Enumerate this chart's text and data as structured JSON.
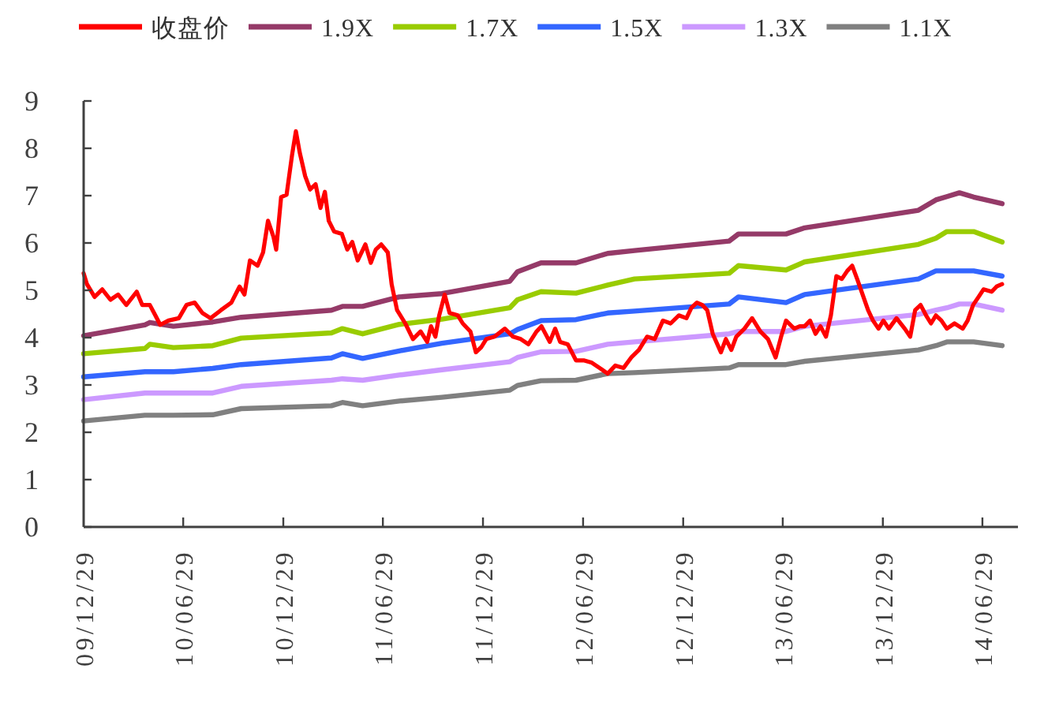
{
  "chart_data": {
    "type": "line",
    "legend": "top",
    "grid": false,
    "ylim": [
      0,
      9
    ],
    "yticks": [
      0,
      1,
      2,
      3,
      4,
      5,
      6,
      7,
      8,
      9
    ],
    "xlim": [
      "2009-12-29",
      "2014-09-02"
    ],
    "xticks": [
      {
        "value": "2009-12-29",
        "label": "09/12/29"
      },
      {
        "value": "2010-06-29",
        "label": "10/06/29"
      },
      {
        "value": "2010-12-29",
        "label": "10/12/29"
      },
      {
        "value": "2011-06-29",
        "label": "11/06/29"
      },
      {
        "value": "2011-12-29",
        "label": "11/12/29"
      },
      {
        "value": "2012-06-29",
        "label": "12/06/29"
      },
      {
        "value": "2012-12-29",
        "label": "12/12/29"
      },
      {
        "value": "2013-06-29",
        "label": "13/06/29"
      },
      {
        "value": "2013-12-29",
        "label": "13/12/29"
      },
      {
        "value": "2014-06-29",
        "label": "14/06/29"
      }
    ],
    "x": [
      "2009-12-29",
      "2010-04-20",
      "2010-04-29",
      "2010-06-11",
      "2010-08-22",
      "2010-10-13",
      "2011-03-27",
      "2011-04-16",
      "2011-05-23",
      "2011-07-29",
      "2011-10-15",
      "2012-02-16",
      "2012-03-01",
      "2012-04-13",
      "2012-06-16",
      "2012-08-13",
      "2012-10-01",
      "2013-03-23",
      "2013-04-09",
      "2013-07-05",
      "2013-08-08",
      "2014-03-04",
      "2014-04-05",
      "2014-04-25",
      "2014-05-18",
      "2014-06-13",
      "2014-08-04"
    ],
    "series": [
      {
        "name": "收盘价",
        "color": "#ff0000",
        "x": [
          "2009-12-29",
          "2010-01-04",
          "2010-01-18",
          "2010-02-01",
          "2010-02-16",
          "2010-03-02",
          "2010-03-17",
          "2010-04-05",
          "2010-04-15",
          "2010-04-29",
          "2010-05-09",
          "2010-05-18",
          "2010-06-02",
          "2010-06-21",
          "2010-07-05",
          "2010-07-20",
          "2010-08-03",
          "2010-08-18",
          "2010-09-06",
          "2010-09-25",
          "2010-10-10",
          "2010-10-19",
          "2010-10-29",
          "2010-11-12",
          "2010-11-22",
          "2010-12-01",
          "2010-12-11",
          "2010-12-16",
          "2010-12-25",
          "2011-01-04",
          "2011-01-14",
          "2011-01-21",
          "2011-01-28",
          "2011-02-07",
          "2011-02-16",
          "2011-02-26",
          "2011-03-07",
          "2011-03-15",
          "2011-03-22",
          "2011-04-01",
          "2011-04-15",
          "2011-04-25",
          "2011-05-04",
          "2011-05-14",
          "2011-05-28",
          "2011-06-07",
          "2011-06-16",
          "2011-06-26",
          "2011-07-08",
          "2011-07-15",
          "2011-07-25",
          "2011-08-09",
          "2011-08-23",
          "2011-09-06",
          "2011-09-18",
          "2011-09-25",
          "2011-10-03",
          "2011-10-10",
          "2011-10-20",
          "2011-10-29",
          "2011-11-13",
          "2011-11-22",
          "2011-12-06",
          "2011-12-16",
          "2011-12-26",
          "2012-01-04",
          "2012-01-19",
          "2012-02-07",
          "2012-02-22",
          "2012-03-07",
          "2012-03-21",
          "2012-04-05",
          "2012-04-14",
          "2012-04-29",
          "2012-05-09",
          "2012-05-18",
          "2012-06-01",
          "2012-06-16",
          "2012-06-30",
          "2012-07-15",
          "2012-07-29",
          "2012-08-13",
          "2012-08-27",
          "2012-09-11",
          "2012-09-25",
          "2012-10-09",
          "2012-10-24",
          "2012-11-07",
          "2012-11-22",
          "2012-12-06",
          "2012-12-21",
          "2013-01-04",
          "2013-01-13",
          "2013-01-23",
          "2013-02-02",
          "2013-02-11",
          "2013-02-21",
          "2013-03-08",
          "2013-03-17",
          "2013-03-27",
          "2013-04-05",
          "2013-04-20",
          "2013-05-04",
          "2013-05-19",
          "2013-06-02",
          "2013-06-16",
          "2013-06-26",
          "2013-07-05",
          "2013-07-20",
          "2013-07-30",
          "2013-08-08",
          "2013-08-18",
          "2013-08-28",
          "2013-09-06",
          "2013-09-16",
          "2013-09-25",
          "2013-10-05",
          "2013-10-15",
          "2013-10-25",
          "2013-11-03",
          "2013-11-12",
          "2013-11-22",
          "2013-12-02",
          "2013-12-11",
          "2013-12-21",
          "2013-12-30",
          "2014-01-09",
          "2014-01-23",
          "2014-02-07",
          "2014-02-17",
          "2014-02-26",
          "2014-03-08",
          "2014-03-18",
          "2014-03-27",
          "2014-04-05",
          "2014-04-15",
          "2014-04-25",
          "2014-05-09",
          "2014-05-24",
          "2014-06-02",
          "2014-06-12",
          "2014-06-22",
          "2014-07-01",
          "2014-07-16",
          "2014-07-25",
          "2014-08-04"
        ],
        "values": [
          5.36,
          5.13,
          4.86,
          5.02,
          4.8,
          4.91,
          4.69,
          4.97,
          4.69,
          4.69,
          4.47,
          4.27,
          4.36,
          4.41,
          4.69,
          4.74,
          4.52,
          4.41,
          4.58,
          4.74,
          5.08,
          4.91,
          5.63,
          5.52,
          5.8,
          6.47,
          6.13,
          5.86,
          6.97,
          7.02,
          7.86,
          8.36,
          7.91,
          7.41,
          7.13,
          7.24,
          6.74,
          7.08,
          6.47,
          6.24,
          6.19,
          5.86,
          6.02,
          5.63,
          5.97,
          5.58,
          5.86,
          5.97,
          5.8,
          5.13,
          4.58,
          4.3,
          3.97,
          4.13,
          3.91,
          4.24,
          4.02,
          4.47,
          4.91,
          4.52,
          4.47,
          4.3,
          4.13,
          3.69,
          3.8,
          3.97,
          4.02,
          4.19,
          4.02,
          3.97,
          3.86,
          4.13,
          4.24,
          3.91,
          4.19,
          3.91,
          3.86,
          3.52,
          3.52,
          3.47,
          3.36,
          3.24,
          3.41,
          3.36,
          3.58,
          3.74,
          4.02,
          3.97,
          4.36,
          4.3,
          4.47,
          4.41,
          4.63,
          4.74,
          4.69,
          4.58,
          4.08,
          3.69,
          3.97,
          3.74,
          4.02,
          4.19,
          4.41,
          4.13,
          3.97,
          3.58,
          4.02,
          4.36,
          4.19,
          4.24,
          4.24,
          4.36,
          4.08,
          4.24,
          4.02,
          4.47,
          5.3,
          5.24,
          5.41,
          5.52,
          5.24,
          4.91,
          4.58,
          4.36,
          4.19,
          4.36,
          4.19,
          4.41,
          4.19,
          4.02,
          4.58,
          4.69,
          4.47,
          4.3,
          4.47,
          4.36,
          4.19,
          4.3,
          4.19,
          4.36,
          4.69,
          4.86,
          5.02,
          4.97,
          5.08,
          5.13
        ]
      },
      {
        "name": "1.9X",
        "color": "#953a68",
        "values": [
          4.04,
          4.27,
          4.32,
          4.24,
          4.33,
          4.43,
          4.58,
          4.66,
          4.66,
          4.86,
          4.93,
          5.19,
          5.39,
          5.58,
          5.58,
          5.78,
          5.84,
          6.04,
          6.19,
          6.19,
          6.32,
          6.69,
          6.91,
          6.98,
          7.06,
          6.97,
          6.83
        ]
      },
      {
        "name": "1.7X",
        "color": "#99cc00",
        "values": [
          3.66,
          3.77,
          3.86,
          3.79,
          3.83,
          3.99,
          4.1,
          4.19,
          4.08,
          4.28,
          4.39,
          4.63,
          4.8,
          4.97,
          4.94,
          5.11,
          5.24,
          5.36,
          5.52,
          5.43,
          5.6,
          5.97,
          6.1,
          6.24,
          6.24,
          6.24,
          6.02
        ]
      },
      {
        "name": "1.5X",
        "color": "#3366ff",
        "values": [
          3.17,
          3.28,
          3.28,
          3.28,
          3.35,
          3.43,
          3.57,
          3.66,
          3.56,
          3.72,
          3.88,
          4.08,
          4.17,
          4.36,
          4.38,
          4.52,
          4.56,
          4.71,
          4.86,
          4.74,
          4.91,
          5.24,
          5.41,
          5.41,
          5.41,
          5.41,
          5.3
        ]
      },
      {
        "name": "1.3X",
        "color": "#cc99ff",
        "values": [
          2.69,
          2.83,
          2.83,
          2.83,
          2.83,
          2.97,
          3.1,
          3.13,
          3.1,
          3.21,
          3.32,
          3.49,
          3.58,
          3.7,
          3.71,
          3.86,
          3.91,
          4.08,
          4.13,
          4.13,
          4.24,
          4.49,
          4.58,
          4.63,
          4.71,
          4.71,
          4.58
        ]
      },
      {
        "name": "1.1X",
        "color": "#808080",
        "values": [
          2.24,
          2.36,
          2.36,
          2.36,
          2.37,
          2.5,
          2.56,
          2.63,
          2.56,
          2.66,
          2.74,
          2.89,
          2.99,
          3.09,
          3.1,
          3.24,
          3.26,
          3.36,
          3.43,
          3.43,
          3.5,
          3.74,
          3.83,
          3.91,
          3.91,
          3.91,
          3.83
        ]
      }
    ]
  }
}
